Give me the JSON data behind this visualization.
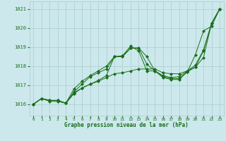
{
  "title": "Graphe pression niveau de la mer (hPa)",
  "xlim": [
    -0.5,
    23.5
  ],
  "ylim": [
    1015.4,
    1021.4
  ],
  "yticks": [
    1016,
    1017,
    1018,
    1019,
    1020,
    1021
  ],
  "xticks": [
    0,
    1,
    2,
    3,
    4,
    5,
    6,
    7,
    8,
    9,
    10,
    11,
    12,
    13,
    14,
    15,
    16,
    17,
    18,
    19,
    20,
    21,
    22,
    23
  ],
  "background_color": "#cce8ec",
  "grid_color": "#aacccc",
  "line_color": "#1a6e1a",
  "tick_color": "#1a6e1a",
  "series": [
    [
      1016.0,
      1016.3,
      1016.2,
      1016.2,
      1016.05,
      1016.55,
      1016.85,
      1017.05,
      1017.2,
      1017.4,
      1017.6,
      1017.65,
      1017.75,
      1017.85,
      1017.85,
      1017.85,
      1017.65,
      1017.6,
      1017.6,
      1017.75,
      1017.95,
      1018.45,
      1020.25,
      1021.0
    ],
    [
      1016.0,
      1016.3,
      1016.2,
      1016.2,
      1016.05,
      1016.65,
      1017.05,
      1017.45,
      1017.65,
      1017.85,
      1018.5,
      1018.5,
      1018.95,
      1018.95,
      1018.5,
      1017.75,
      1017.45,
      1017.35,
      1017.35,
      1017.7,
      1018.6,
      1019.85,
      1020.1,
      1021.0
    ],
    [
      1016.0,
      1016.3,
      1016.15,
      1016.15,
      1016.05,
      1016.6,
      1016.85,
      1017.05,
      1017.25,
      1017.5,
      1018.5,
      1018.5,
      1018.95,
      1018.95,
      1018.1,
      1017.75,
      1017.4,
      1017.3,
      1017.3,
      1017.7,
      1017.95,
      1018.8,
      1020.25,
      1021.0
    ],
    [
      1016.0,
      1016.3,
      1016.2,
      1016.2,
      1016.05,
      1016.8,
      1017.2,
      1017.5,
      1017.75,
      1018.0,
      1018.5,
      1018.55,
      1019.05,
      1018.8,
      1017.75,
      1017.75,
      1017.5,
      1017.4,
      1017.45,
      1017.75,
      1018.05,
      1018.85,
      1020.25,
      1021.0
    ]
  ]
}
